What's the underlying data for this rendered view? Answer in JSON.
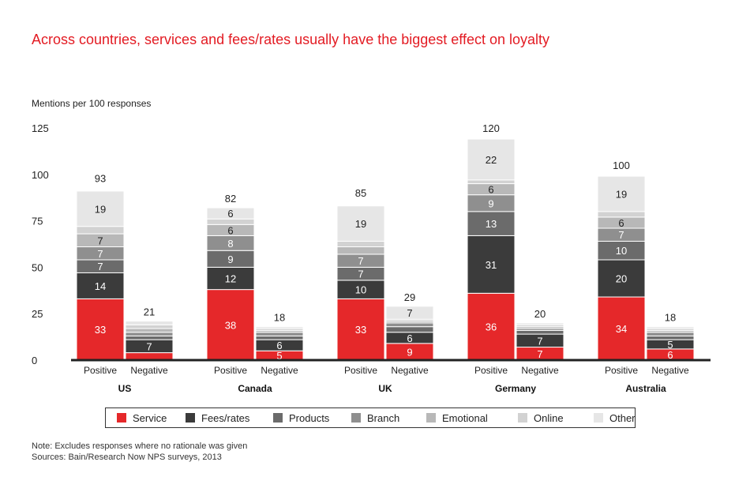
{
  "title": "Across countries, services and fees/rates usually have the biggest effect on loyalty",
  "y_axis_label": "Mentions per 100 responses",
  "notes": {
    "note": "Note: Excludes responses where no rationale was given",
    "sources": "Sources: Bain/Research Now NPS surveys, 2013"
  },
  "colors": {
    "Service": "#e5282a",
    "Fees/rates": "#3b3b3b",
    "Products": "#6b6b6b",
    "Branch": "#8f8f8f",
    "Emotional": "#b8b8b8",
    "Online": "#d2d2d2",
    "Other": "#e6e6e6"
  },
  "chart_data": {
    "type": "stacked-bar",
    "title": "Across countries, services and fees/rates usually have the biggest effect on loyalty",
    "ylabel": "Mentions per 100 responses",
    "ylim": [
      0,
      125
    ],
    "yticks": [
      0,
      25,
      50,
      75,
      100,
      125
    ],
    "series_names": [
      "Service",
      "Fees/rates",
      "Products",
      "Branch",
      "Emotional",
      "Online",
      "Other"
    ],
    "groups": [
      {
        "name": "US",
        "bars": [
          {
            "label": "Positive",
            "total": 93,
            "segments": [
              33,
              14,
              7,
              7,
              7,
              4,
              19
            ],
            "shown_labels": [
              "33",
              "14",
              "7",
              "7",
              "7",
              "",
              "19"
            ]
          },
          {
            "label": "Negative",
            "total": 21,
            "segments": [
              4,
              7,
              2,
              2,
              2,
              2,
              2
            ],
            "shown_labels": [
              "",
              "7",
              "",
              "",
              "",
              "",
              ""
            ]
          }
        ]
      },
      {
        "name": "Canada",
        "bars": [
          {
            "label": "Positive",
            "total": 82,
            "segments": [
              38,
              12,
              9,
              8,
              6,
              3,
              6
            ],
            "shown_labels": [
              "38",
              "12",
              "9",
              "8",
              "6",
              "",
              "6"
            ]
          },
          {
            "label": "Negative",
            "total": 18,
            "segments": [
              5,
              6,
              2,
              2,
              1,
              1,
              1
            ],
            "shown_labels": [
              "5",
              "6",
              "",
              "",
              "",
              "",
              ""
            ]
          }
        ]
      },
      {
        "name": "UK",
        "bars": [
          {
            "label": "Positive",
            "total": 85,
            "segments": [
              33,
              10,
              7,
              7,
              4,
              3,
              19
            ],
            "shown_labels": [
              "33",
              "10",
              "7",
              "7",
              "",
              "",
              "19"
            ]
          },
          {
            "label": "Negative",
            "total": 29,
            "segments": [
              9,
              6,
              3,
              2,
              1,
              1,
              7
            ],
            "shown_labels": [
              "9",
              "6",
              "",
              "",
              "",
              "",
              "7"
            ]
          }
        ]
      },
      {
        "name": "Germany",
        "bars": [
          {
            "label": "Positive",
            "total": 120,
            "segments": [
              36,
              31,
              13,
              9,
              6,
              2,
              22
            ],
            "shown_labels": [
              "36",
              "31",
              "13",
              "9",
              "6",
              "",
              "22"
            ]
          },
          {
            "label": "Negative",
            "total": 20,
            "segments": [
              7,
              7,
              2,
              1,
              1,
              1,
              1
            ],
            "shown_labels": [
              "7",
              "7",
              "",
              "",
              "",
              "",
              ""
            ]
          }
        ]
      },
      {
        "name": "Australia",
        "bars": [
          {
            "label": "Positive",
            "total": 100,
            "segments": [
              34,
              20,
              10,
              7,
              6,
              3,
              19
            ],
            "shown_labels": [
              "34",
              "20",
              "10",
              "7",
              "6",
              "",
              "19"
            ]
          },
          {
            "label": "Negative",
            "total": 18,
            "segments": [
              6,
              5,
              2,
              2,
              1,
              1,
              1
            ],
            "shown_labels": [
              "6",
              "5",
              "",
              "",
              "",
              "",
              ""
            ]
          }
        ]
      }
    ],
    "legend": [
      "Service",
      "Fees/rates",
      "Products",
      "Branch",
      "Emotional",
      "Online",
      "Other"
    ]
  }
}
